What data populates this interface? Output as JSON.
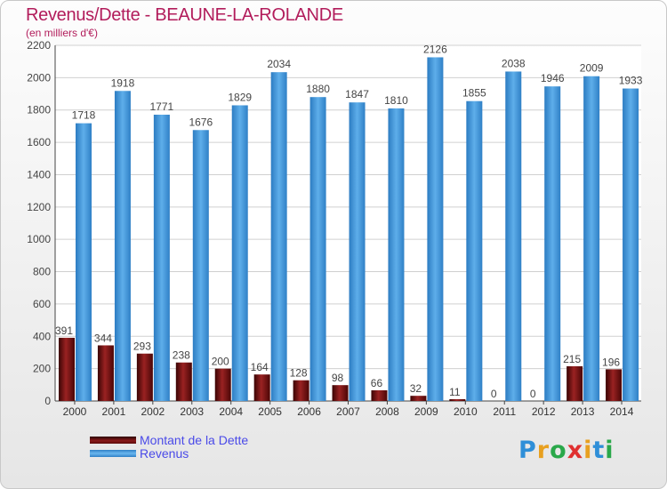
{
  "title": "Revenus/Dette - BEAUNE-LA-ROLANDE",
  "subtitle": "(en milliers d'€)",
  "colors": {
    "dette": "#8b1a1a",
    "revenus": "#3d95db",
    "title": "#b21c5b",
    "legend_text": "#4a4ae8",
    "grid": "#d0d0d0"
  },
  "legend": [
    {
      "label": "Montant de la Dette",
      "color": "#6a0f0f"
    },
    {
      "label": "Revenus",
      "color": "#3d95db"
    }
  ],
  "logo": {
    "text": "Proxiti",
    "letters": [
      "P",
      "r",
      "o",
      "x",
      "i",
      "t",
      "i"
    ]
  },
  "chart_data": {
    "type": "bar",
    "title": "Revenus/Dette - BEAUNE-LA-ROLANDE",
    "subtitle": "(en milliers d'€)",
    "xlabel": "",
    "ylabel": "",
    "ylim": [
      0,
      2200
    ],
    "yticks": [
      0,
      200,
      400,
      600,
      800,
      1000,
      1200,
      1400,
      1600,
      1800,
      2000,
      2200
    ],
    "grid": true,
    "categories": [
      "2000",
      "2001",
      "2002",
      "2003",
      "2004",
      "2005",
      "2006",
      "2007",
      "2008",
      "2009",
      "2010",
      "2011",
      "2012",
      "2013",
      "2014"
    ],
    "series": [
      {
        "name": "Montant de la Dette",
        "values": [
          391,
          344,
          293,
          238,
          200,
          164,
          128,
          98,
          66,
          32,
          11,
          0,
          0,
          215,
          196
        ]
      },
      {
        "name": "Revenus",
        "values": [
          1718,
          1918,
          1771,
          1676,
          1829,
          2034,
          1880,
          1847,
          1810,
          2126,
          1855,
          2038,
          1946,
          2009,
          1933
        ]
      }
    ]
  }
}
